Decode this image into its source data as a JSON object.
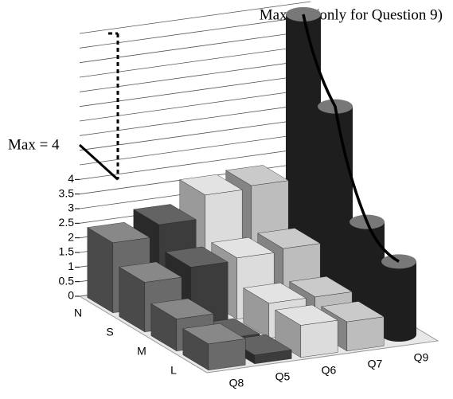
{
  "chart_data": {
    "type": "bar3d",
    "annotations": [
      "Max = 9 (only for Question 9)",
      "Max = 4"
    ],
    "categories": [
      "N",
      "S",
      "M",
      "L"
    ],
    "series": [
      {
        "name": "Q8",
        "color": "#6a6a6a",
        "values": [
          2.4,
          1.7,
          1.1,
          0.9
        ]
      },
      {
        "name": "Q5",
        "color": "#3c3c3c",
        "values": [
          2.8,
          2.0,
          0.2,
          0.3
        ]
      },
      {
        "name": "Q6",
        "color": "#dcdcdc",
        "values": [
          3.6,
          2.1,
          1.2,
          1.1
        ]
      },
      {
        "name": "Q7",
        "color": "#bdbdbd",
        "values": [
          3.7,
          2.2,
          1.2,
          1.0
        ]
      },
      {
        "name": "Q9",
        "color": "#1e1e1e",
        "shape": "cylinder",
        "values": [
          9,
          6.5,
          3.2,
          2.5
        ]
      }
    ],
    "ylim": [
      0,
      9
    ],
    "yticks": [
      0,
      0.5,
      1,
      1.5,
      2,
      2.5,
      3,
      3.5,
      4
    ],
    "extra_gridlines": [
      4.5,
      5,
      5.5,
      6,
      6.5,
      7,
      7.5,
      8,
      8.5,
      9
    ],
    "grid": true
  }
}
